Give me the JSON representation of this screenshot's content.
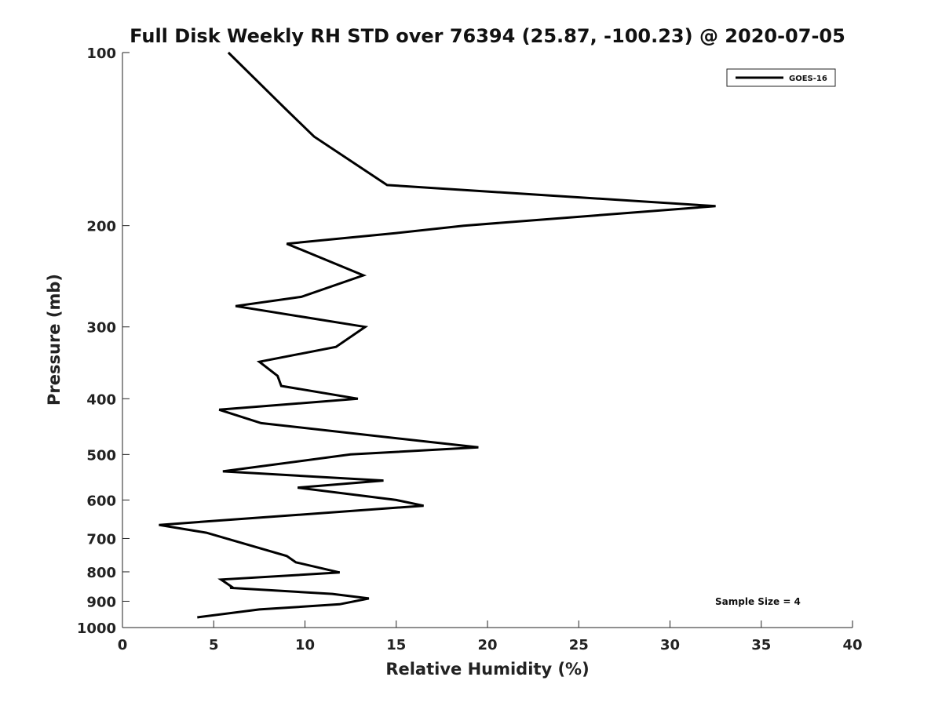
{
  "chart_data": {
    "type": "line",
    "title": "Full Disk Weekly RH STD over 76394 (25.87, -100.23) @ 2020-07-05",
    "xlabel": "Relative Humidity (%)",
    "ylabel": "Pressure (mb)",
    "xlim": [
      0,
      40
    ],
    "ylim": [
      100,
      1000
    ],
    "y_scale": "log",
    "y_direction": "reversed",
    "x_ticks": [
      "0",
      "5",
      "10",
      "15",
      "20",
      "25",
      "30",
      "35",
      "40"
    ],
    "y_ticks": [
      "100",
      "200",
      "300",
      "400",
      "500",
      "600",
      "700",
      "800",
      "900",
      "1000"
    ],
    "grid": false,
    "legend_position": "top-right",
    "series": [
      {
        "name": "GOES-16",
        "color": "#000000",
        "points": [
          {
            "rh": 5.8,
            "p": 100
          },
          {
            "rh": 8.9,
            "p": 125
          },
          {
            "rh": 10.5,
            "p": 140
          },
          {
            "rh": 14.5,
            "p": 170
          },
          {
            "rh": 32.5,
            "p": 185
          },
          {
            "rh": 18.7,
            "p": 200
          },
          {
            "rh": 15.0,
            "p": 206
          },
          {
            "rh": 9.0,
            "p": 215
          },
          {
            "rh": 13.2,
            "p": 244
          },
          {
            "rh": 9.8,
            "p": 266
          },
          {
            "rh": 6.2,
            "p": 276
          },
          {
            "rh": 13.3,
            "p": 300
          },
          {
            "rh": 11.7,
            "p": 325
          },
          {
            "rh": 7.5,
            "p": 345
          },
          {
            "rh": 8.5,
            "p": 365
          },
          {
            "rh": 8.7,
            "p": 380
          },
          {
            "rh": 12.9,
            "p": 400
          },
          {
            "rh": 5.3,
            "p": 418
          },
          {
            "rh": 7.6,
            "p": 441
          },
          {
            "rh": 19.5,
            "p": 486
          },
          {
            "rh": 12.5,
            "p": 500
          },
          {
            "rh": 5.5,
            "p": 535
          },
          {
            "rh": 14.3,
            "p": 555
          },
          {
            "rh": 9.6,
            "p": 571
          },
          {
            "rh": 15.0,
            "p": 600
          },
          {
            "rh": 16.5,
            "p": 614
          },
          {
            "rh": 5.7,
            "p": 650
          },
          {
            "rh": 2.0,
            "p": 663
          },
          {
            "rh": 4.6,
            "p": 684
          },
          {
            "rh": 9.0,
            "p": 751
          },
          {
            "rh": 9.5,
            "p": 770
          },
          {
            "rh": 11.9,
            "p": 802
          },
          {
            "rh": 5.4,
            "p": 825
          },
          {
            "rh": 6.0,
            "p": 850
          },
          {
            "rh": 5.9,
            "p": 853
          },
          {
            "rh": 11.5,
            "p": 874
          },
          {
            "rh": 13.5,
            "p": 890
          },
          {
            "rh": 11.9,
            "p": 911
          },
          {
            "rh": 7.5,
            "p": 930
          },
          {
            "rh": 4.1,
            "p": 960
          }
        ]
      }
    ],
    "annotations": [
      "Sample Size = 4"
    ]
  }
}
